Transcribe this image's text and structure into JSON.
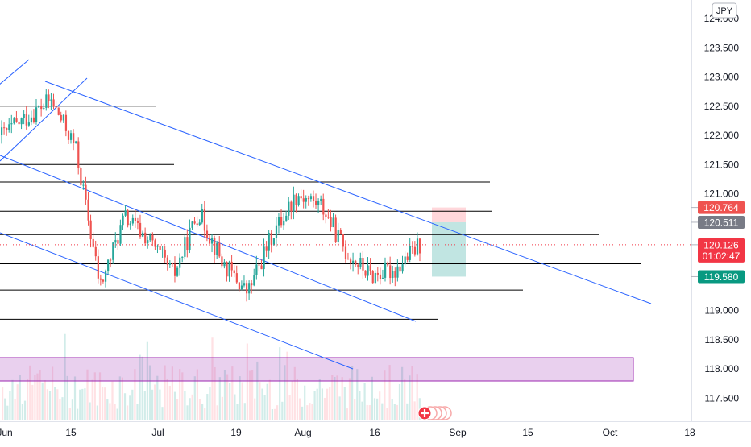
{
  "currency": "JPY",
  "chart_data": {
    "type": "candlestick",
    "title": "",
    "x_tick_labels": [
      "Jun",
      "15",
      "Jul",
      "19",
      "Aug",
      "16",
      "Sep",
      "15",
      "Oct",
      "18"
    ],
    "y_tick_labels": [
      "124.000",
      "123.500",
      "123.000",
      "122.500",
      "122.000",
      "121.500",
      "121.000",
      "119.000",
      "118.500",
      "118.000",
      "117.500"
    ],
    "y_range": [
      117.25,
      124.1
    ],
    "ohlc_sample": [
      {
        "open": 121.9,
        "high": 122.2,
        "low": 121.7,
        "close": 122.0
      },
      {
        "open": 122.0,
        "high": 122.4,
        "low": 121.8,
        "close": 122.3
      },
      {
        "open": 122.3,
        "high": 122.8,
        "low": 122.1,
        "close": 122.6
      },
      {
        "open": 122.6,
        "high": 122.7,
        "low": 121.6,
        "close": 121.8
      },
      {
        "open": 121.8,
        "high": 121.9,
        "low": 119.0,
        "close": 119.4
      },
      {
        "open": 119.4,
        "high": 120.8,
        "low": 119.2,
        "close": 120.6
      },
      {
        "open": 120.6,
        "high": 120.9,
        "low": 120.0,
        "close": 120.2
      },
      {
        "open": 120.2,
        "high": 120.7,
        "low": 119.3,
        "close": 119.6
      },
      {
        "open": 119.6,
        "high": 120.9,
        "low": 119.5,
        "close": 120.7
      },
      {
        "open": 120.7,
        "high": 120.8,
        "low": 119.6,
        "close": 119.8
      },
      {
        "open": 119.8,
        "high": 120.0,
        "low": 118.9,
        "close": 119.3
      },
      {
        "open": 119.3,
        "high": 120.5,
        "low": 119.2,
        "close": 120.3
      },
      {
        "open": 120.3,
        "high": 121.2,
        "low": 120.2,
        "close": 121.0
      },
      {
        "open": 121.0,
        "high": 121.1,
        "low": 120.6,
        "close": 120.8
      },
      {
        "open": 120.8,
        "high": 121.1,
        "low": 119.8,
        "close": 120.0
      },
      {
        "open": 120.0,
        "high": 120.2,
        "low": 119.4,
        "close": 119.6
      },
      {
        "open": 119.6,
        "high": 119.9,
        "low": 119.4,
        "close": 119.7
      },
      {
        "open": 119.7,
        "high": 120.3,
        "low": 119.6,
        "close": 120.126
      }
    ],
    "horizontal_levels": [
      122.5,
      121.5,
      121.2,
      120.7,
      120.3,
      119.8,
      119.35,
      118.85
    ],
    "price_labels": {
      "target": "120.764",
      "level": "120.511",
      "current": "120.126",
      "countdown": "01:02:47",
      "stop": "119.580"
    },
    "colors": {
      "up": "#26a69a",
      "down": "#ef5350",
      "trend": "#2962ff",
      "level": "#000000",
      "current": "#f23645",
      "stop": "#089981",
      "zone": "#9c27b0",
      "profit_zone": "#b2dfdb",
      "loss_zone": "#ffcdd2"
    }
  }
}
